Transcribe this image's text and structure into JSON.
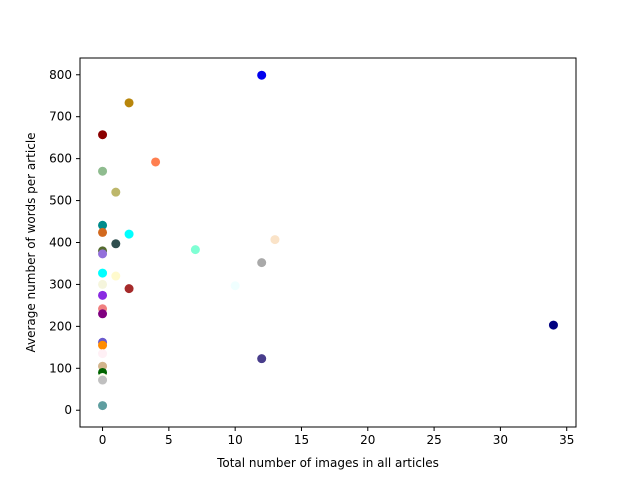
{
  "chart_data": {
    "type": "scatter",
    "xlabel": "Total number of images in all articles",
    "ylabel": "Average number of words per article",
    "xlim": [
      -1.7,
      35.7
    ],
    "ylim": [
      -40,
      840
    ],
    "xticks": [
      0,
      5,
      10,
      15,
      20,
      25,
      30,
      35
    ],
    "yticks": [
      0,
      100,
      200,
      300,
      400,
      500,
      600,
      700,
      800
    ],
    "grid": false,
    "points": [
      {
        "x": 12,
        "y": 799,
        "color": "#0000ee"
      },
      {
        "x": 2,
        "y": 733,
        "color": "#b8860b"
      },
      {
        "x": 0,
        "y": 657,
        "color": "#8b0000"
      },
      {
        "x": 4,
        "y": 592,
        "color": "#ff7f50"
      },
      {
        "x": 0,
        "y": 570,
        "color": "#8fbc8f"
      },
      {
        "x": 1,
        "y": 520,
        "color": "#bdb76b"
      },
      {
        "x": 0,
        "y": 441,
        "color": "#008b8b"
      },
      {
        "x": 0,
        "y": 424,
        "color": "#d2691e"
      },
      {
        "x": 2,
        "y": 420,
        "color": "#00ffff"
      },
      {
        "x": 13,
        "y": 407,
        "color": "#fae3c8"
      },
      {
        "x": 1,
        "y": 397,
        "color": "#2f4f4f"
      },
      {
        "x": 7,
        "y": 383,
        "color": "#7fffd4"
      },
      {
        "x": 0,
        "y": 380,
        "color": "#556b2f"
      },
      {
        "x": 0,
        "y": 373,
        "color": "#9370db"
      },
      {
        "x": 12,
        "y": 352,
        "color": "#a9a9a9"
      },
      {
        "x": 0,
        "y": 327,
        "color": "#00ffff"
      },
      {
        "x": 1,
        "y": 320,
        "color": "#fffacd"
      },
      {
        "x": 0,
        "y": 300,
        "color": "#f5f5dc"
      },
      {
        "x": 10,
        "y": 297,
        "color": "#f0ffff"
      },
      {
        "x": 2,
        "y": 290,
        "color": "#a52a2a"
      },
      {
        "x": 0,
        "y": 274,
        "color": "#8a2be2"
      },
      {
        "x": 0,
        "y": 242,
        "color": "#f08080"
      },
      {
        "x": 0,
        "y": 230,
        "color": "#800080"
      },
      {
        "x": 34,
        "y": 203,
        "color": "#000080"
      },
      {
        "x": 0,
        "y": 162,
        "color": "#6a5acd"
      },
      {
        "x": 0,
        "y": 155,
        "color": "#ff8c00"
      },
      {
        "x": 0,
        "y": 135,
        "color": "#fff0f5"
      },
      {
        "x": 12,
        "y": 123,
        "color": "#483d8b"
      },
      {
        "x": 0,
        "y": 105,
        "color": "#d2b48c"
      },
      {
        "x": 0,
        "y": 90,
        "color": "#006400"
      },
      {
        "x": 0,
        "y": 78,
        "color": "#fffff0"
      },
      {
        "x": 0,
        "y": 72,
        "color": "#c0c0c0"
      },
      {
        "x": 0,
        "y": 11,
        "color": "#5f9ea0"
      }
    ]
  }
}
